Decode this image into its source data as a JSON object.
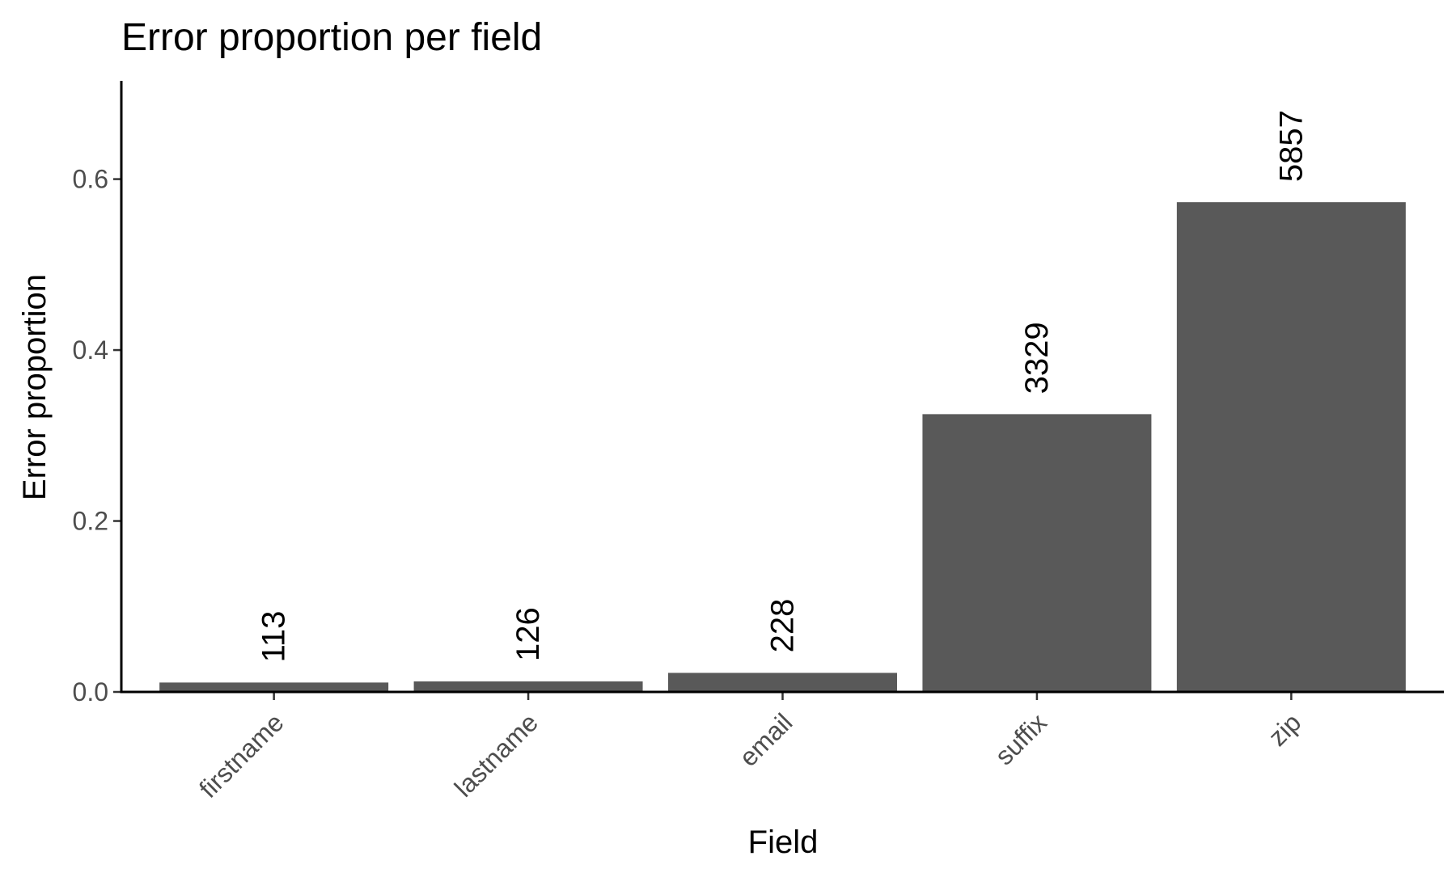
{
  "chart_data": {
    "type": "bar",
    "title": "Error proportion per field",
    "xlabel": "Field",
    "ylabel": "Error proportion",
    "categories": [
      "firstname",
      "lastname",
      "email",
      "suffix",
      "zip"
    ],
    "values": [
      0.011,
      0.0123,
      0.0223,
      0.325,
      0.573
    ],
    "data_labels": [
      "113",
      "126",
      "228",
      "3329",
      "5857"
    ],
    "yticks": [
      0.0,
      0.2,
      0.4,
      0.6
    ],
    "ytick_labels": [
      "0.0",
      "0.2",
      "0.4",
      "0.6"
    ],
    "ylim": [
      0,
      0.715
    ],
    "grid": false,
    "legend": "none",
    "bar_color": "#595959"
  }
}
